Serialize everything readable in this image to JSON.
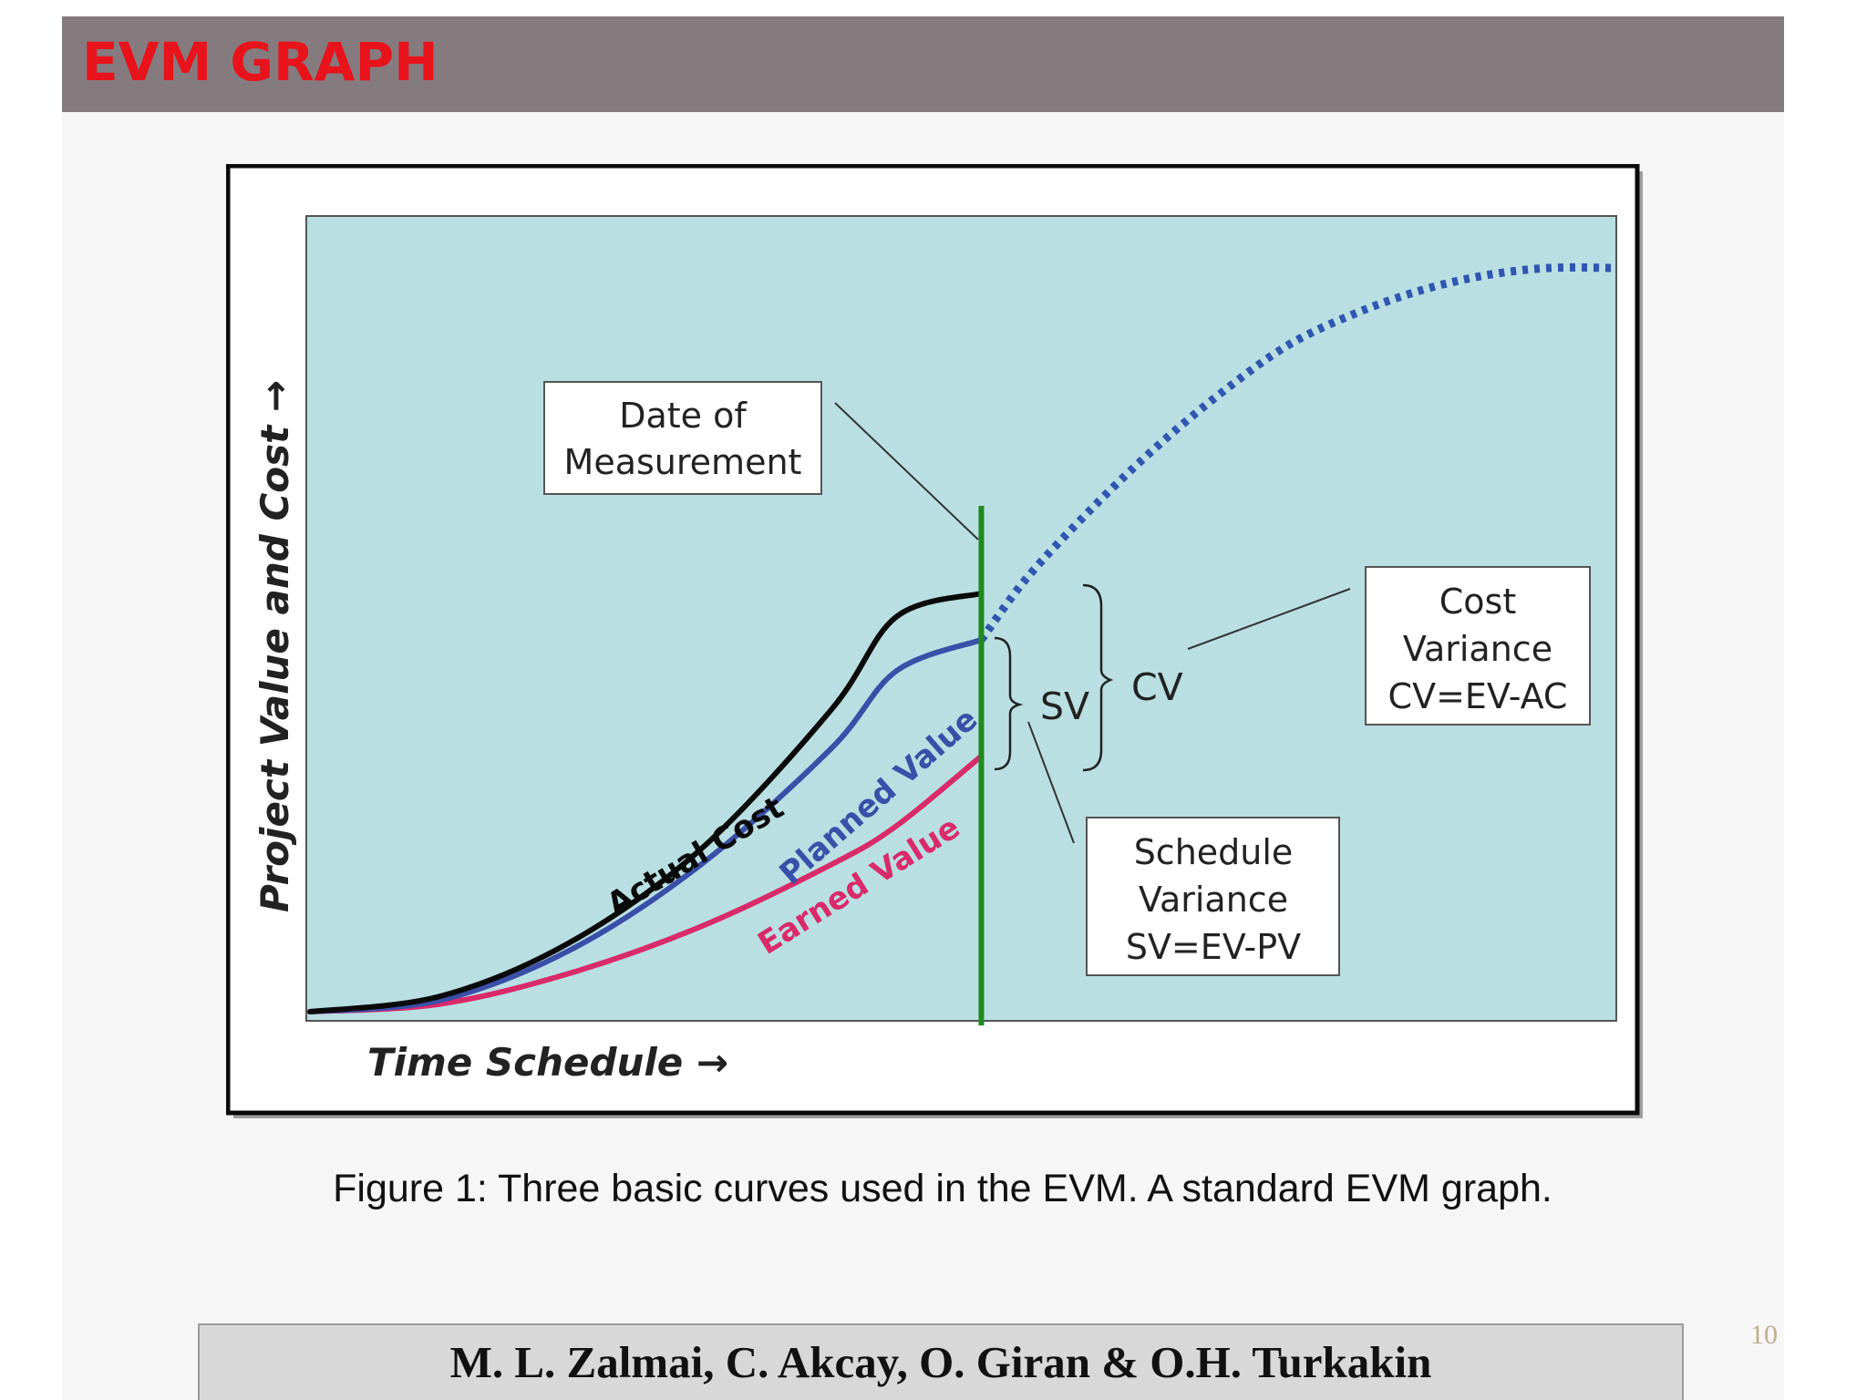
{
  "slide": {
    "title": "EVM GRAPH",
    "caption": "Figure 1: Three basic curves used in the EVM. A standard EVM graph.",
    "authors": "M. L. Zalmai, C. Akcay, O. Giran & O.H. Turkakin",
    "page_number": "10"
  },
  "colors": {
    "title": "#e8131b",
    "plot_background": "#b9dfe2",
    "actual_cost": "#0a0a0a",
    "planned_value": "#3a4fa8",
    "earned_value": "#d92a6a",
    "date_line": "#1f8a1f",
    "projection": "#2f56b0"
  },
  "chart_data": {
    "type": "line",
    "xlabel": "Time Schedule →",
    "ylabel": "Project Value and Cost →",
    "xlim": [
      0,
      100
    ],
    "ylim": [
      0,
      100
    ],
    "grid": false,
    "date_of_measurement": 51.5,
    "series": [
      {
        "name": "Actual Cost",
        "style": "solid",
        "color": "#0a0a0a",
        "x": [
          0,
          10,
          20,
          30,
          40,
          45,
          51.5
        ],
        "y": [
          0,
          2,
          9,
          21,
          39,
          51,
          54
        ]
      },
      {
        "name": "Planned Value",
        "style": "solid",
        "color": "#3a4fa8",
        "x": [
          0,
          10,
          20,
          30,
          40,
          45,
          51.5
        ],
        "y": [
          0,
          1.5,
          8,
          19,
          34,
          44,
          48
        ]
      },
      {
        "name": "Earned Value",
        "style": "solid",
        "color": "#d92a6a",
        "x": [
          0,
          10,
          20,
          30,
          40,
          45,
          51.5
        ],
        "y": [
          0,
          1,
          5,
          11,
          19,
          24,
          33
        ]
      },
      {
        "name": "",
        "style": "dotted",
        "color": "#2f56b0",
        "x": [
          51.5,
          55,
          60,
          65,
          70,
          75,
          80,
          85,
          90,
          95,
          100
        ],
        "y": [
          48,
          56,
          65,
          73,
          80,
          86,
          90,
          93,
          95,
          96,
          96
        ]
      }
    ],
    "annotations": {
      "date_of_measurement": [
        "Date of",
        "Measurement"
      ],
      "sv": "SV",
      "cv": "CV",
      "cost_variance": [
        "Cost",
        "Variance",
        "CV=EV-AC"
      ],
      "schedule_variance": [
        "Schedule",
        "Variance",
        "SV=EV-PV"
      ]
    }
  }
}
